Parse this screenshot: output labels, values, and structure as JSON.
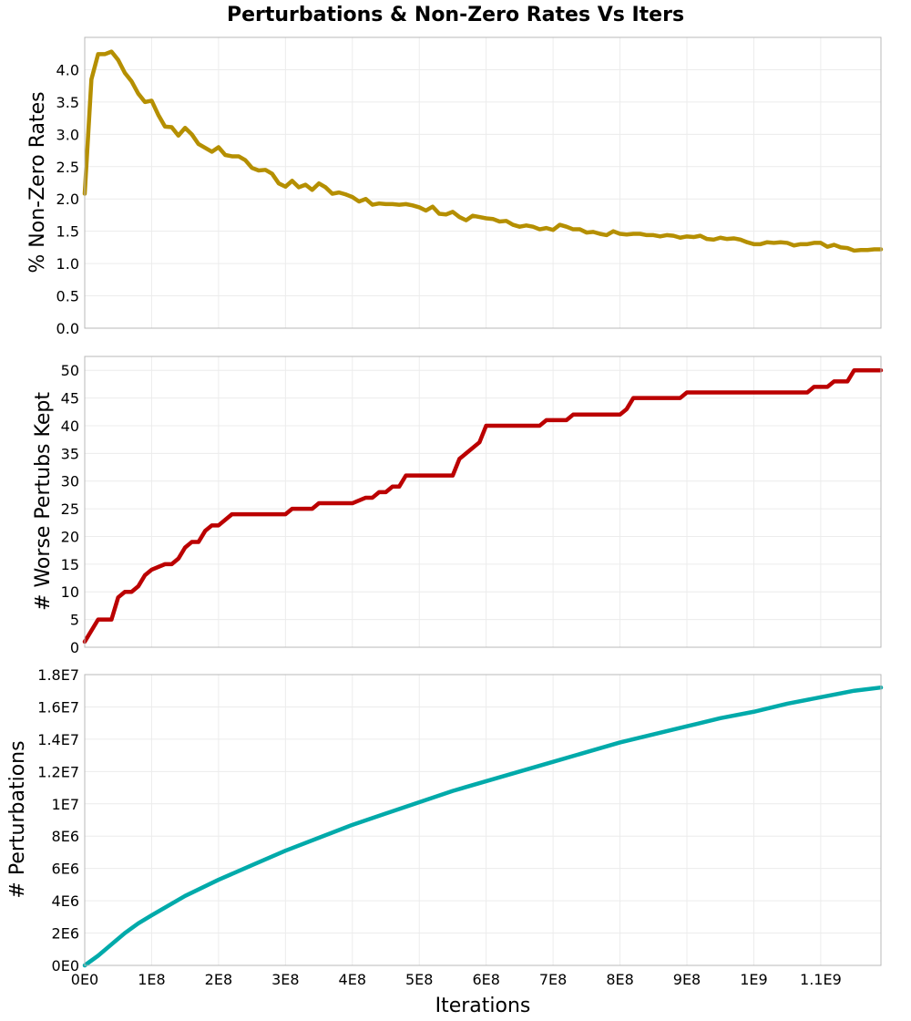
{
  "chart_data": {
    "type": "line",
    "title": "Perturbations & Non-Zero Rates Vs Iters",
    "xlabel": "Iterations",
    "xlim": [
      0,
      1190000000
    ],
    "xticks": [
      0,
      100000000,
      200000000,
      300000000,
      400000000,
      500000000,
      600000000,
      700000000,
      800000000,
      900000000,
      1000000000,
      1100000000
    ],
    "xtick_labels": [
      "0E0",
      "1E8",
      "2E8",
      "3E8",
      "4E8",
      "5E8",
      "6E8",
      "7E8",
      "8E8",
      "9E8",
      "1E9",
      "1.1E9"
    ],
    "grid": true,
    "panels": [
      {
        "ylabel": "% Non-Zero Rates",
        "ylim": [
          0,
          4.5
        ],
        "yticks": [
          0,
          0.5,
          1,
          1.5,
          2,
          2.5,
          3,
          3.5,
          4
        ],
        "ytick_labels": [
          "0.0",
          "0.5",
          "1.0",
          "1.5",
          "2.0",
          "2.5",
          "3.0",
          "3.5",
          "4.0"
        ],
        "color": "#b58f00",
        "x": [
          0,
          10000000,
          20000000,
          30000000,
          40000000,
          50000000,
          60000000,
          70000000,
          80000000,
          90000000,
          100000000,
          110000000,
          120000000,
          130000000,
          140000000,
          150000000,
          160000000,
          170000000,
          180000000,
          190000000,
          200000000,
          210000000,
          220000000,
          230000000,
          240000000,
          250000000,
          260000000,
          270000000,
          280000000,
          290000000,
          300000000,
          310000000,
          320000000,
          330000000,
          340000000,
          350000000,
          360000000,
          370000000,
          380000000,
          390000000,
          400000000,
          410000000,
          420000000,
          430000000,
          440000000,
          450000000,
          460000000,
          470000000,
          480000000,
          490000000,
          500000000,
          510000000,
          520000000,
          530000000,
          540000000,
          550000000,
          560000000,
          570000000,
          580000000,
          590000000,
          600000000,
          610000000,
          620000000,
          630000000,
          640000000,
          650000000,
          660000000,
          670000000,
          680000000,
          690000000,
          700000000,
          710000000,
          720000000,
          730000000,
          740000000,
          750000000,
          760000000,
          770000000,
          780000000,
          790000000,
          800000000,
          810000000,
          820000000,
          830000000,
          840000000,
          850000000,
          860000000,
          870000000,
          880000000,
          890000000,
          900000000,
          910000000,
          920000000,
          930000000,
          940000000,
          950000000,
          960000000,
          970000000,
          980000000,
          990000000,
          1000000000,
          1010000000,
          1020000000,
          1030000000,
          1040000000,
          1050000000,
          1060000000,
          1070000000,
          1080000000,
          1090000000,
          1100000000,
          1110000000,
          1120000000,
          1130000000,
          1140000000,
          1150000000,
          1160000000,
          1170000000,
          1180000000,
          1190000000
        ],
        "y": [
          2.08,
          3.85,
          4.24,
          4.24,
          4.28,
          4.15,
          3.95,
          3.82,
          3.63,
          3.5,
          3.52,
          3.3,
          3.12,
          3.11,
          2.98,
          3.1,
          3.0,
          2.85,
          2.79,
          2.73,
          2.8,
          2.68,
          2.66,
          2.66,
          2.6,
          2.48,
          2.44,
          2.45,
          2.39,
          2.24,
          2.19,
          2.28,
          2.18,
          2.22,
          2.14,
          2.24,
          2.18,
          2.08,
          2.1,
          2.07,
          2.03,
          1.96,
          2.0,
          1.91,
          1.93,
          1.92,
          1.92,
          1.91,
          1.92,
          1.9,
          1.87,
          1.82,
          1.88,
          1.77,
          1.76,
          1.8,
          1.72,
          1.67,
          1.74,
          1.72,
          1.7,
          1.69,
          1.65,
          1.66,
          1.6,
          1.57,
          1.59,
          1.57,
          1.53,
          1.55,
          1.52,
          1.6,
          1.57,
          1.53,
          1.53,
          1.48,
          1.49,
          1.46,
          1.44,
          1.5,
          1.46,
          1.45,
          1.46,
          1.46,
          1.44,
          1.44,
          1.42,
          1.44,
          1.43,
          1.4,
          1.42,
          1.41,
          1.43,
          1.38,
          1.37,
          1.4,
          1.38,
          1.39,
          1.37,
          1.33,
          1.3,
          1.3,
          1.33,
          1.32,
          1.33,
          1.32,
          1.28,
          1.3,
          1.3,
          1.32,
          1.32,
          1.26,
          1.29,
          1.25,
          1.24,
          1.2,
          1.21,
          1.21,
          1.22,
          1.22
        ]
      },
      {
        "ylabel": "# Worse Pertubs Kept",
        "ylim": [
          0,
          52.5
        ],
        "yticks": [
          0,
          5,
          10,
          15,
          20,
          25,
          30,
          35,
          40,
          45,
          50
        ],
        "ytick_labels": [
          "0",
          "5",
          "10",
          "15",
          "20",
          "25",
          "30",
          "35",
          "40",
          "45",
          "50"
        ],
        "color": "#bb0000",
        "x": [
          0,
          20000000,
          40000000,
          50000000,
          60000000,
          70000000,
          80000000,
          90000000,
          100000000,
          120000000,
          130000000,
          140000000,
          150000000,
          160000000,
          170000000,
          180000000,
          190000000,
          200000000,
          220000000,
          240000000,
          300000000,
          310000000,
          340000000,
          350000000,
          390000000,
          400000000,
          420000000,
          430000000,
          440000000,
          450000000,
          460000000,
          470000000,
          480000000,
          490000000,
          550000000,
          560000000,
          590000000,
          600000000,
          680000000,
          690000000,
          720000000,
          730000000,
          800000000,
          810000000,
          820000000,
          890000000,
          900000000,
          1080000000,
          1090000000,
          1110000000,
          1120000000,
          1140000000,
          1150000000,
          1190000000
        ],
        "y": [
          1,
          5,
          5,
          9,
          10,
          10,
          11,
          13,
          14,
          15,
          15,
          16,
          18,
          19,
          19,
          21,
          22,
          22,
          24,
          24,
          24,
          25,
          25,
          26,
          26,
          26,
          27,
          27,
          28,
          28,
          29,
          29,
          31,
          31,
          31,
          34,
          37,
          40,
          40,
          41,
          41,
          42,
          42,
          43,
          45,
          45,
          46,
          46,
          47,
          47,
          48,
          48,
          50,
          50
        ]
      },
      {
        "ylabel": "# Perturbations",
        "ylim": [
          0,
          18000000
        ],
        "yticks": [
          0,
          2000000,
          4000000,
          6000000,
          8000000,
          10000000,
          12000000,
          14000000,
          16000000,
          18000000
        ],
        "ytick_labels": [
          "0E0",
          "2E6",
          "4E6",
          "6E6",
          "8E6",
          "1E7",
          "1.2E7",
          "1.4E7",
          "1.6E7",
          "1.8E7"
        ],
        "color": "#00aaaa",
        "x": [
          0,
          20000000,
          40000000,
          60000000,
          80000000,
          100000000,
          150000000,
          200000000,
          250000000,
          300000000,
          350000000,
          400000000,
          450000000,
          500000000,
          550000000,
          600000000,
          650000000,
          700000000,
          750000000,
          800000000,
          850000000,
          900000000,
          950000000,
          1000000000,
          1050000000,
          1100000000,
          1150000000,
          1190000000
        ],
        "y": [
          0,
          600000,
          1300000,
          2000000,
          2600000,
          3100000,
          4300000,
          5300000,
          6200000,
          7100000,
          7900000,
          8700000,
          9400000,
          10100000,
          10800000,
          11400000,
          12000000,
          12600000,
          13200000,
          13800000,
          14300000,
          14800000,
          15300000,
          15700000,
          16200000,
          16600000,
          17000000,
          17200000
        ]
      }
    ]
  }
}
